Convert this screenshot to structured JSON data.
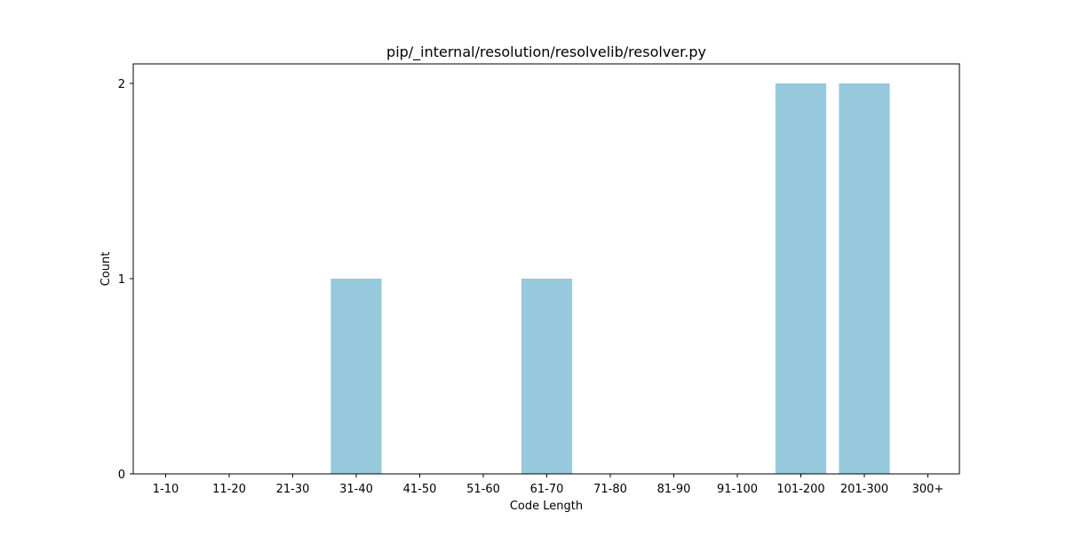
{
  "chart_data": {
    "type": "bar",
    "title": "pip/_internal/resolution/resolvelib/resolver.py",
    "xlabel": "Code Length",
    "ylabel": "Count",
    "categories": [
      "1-10",
      "11-20",
      "21-30",
      "31-40",
      "41-50",
      "51-60",
      "61-70",
      "71-80",
      "81-90",
      "91-100",
      "101-200",
      "201-300",
      "300+"
    ],
    "values": [
      0,
      0,
      0,
      1,
      0,
      0,
      1,
      0,
      0,
      0,
      2,
      2,
      0
    ],
    "ylim": [
      0,
      2.1
    ],
    "yticks": [
      0,
      1,
      2
    ],
    "bar_color": "#96c9dc",
    "grid": false,
    "legend": "none"
  }
}
